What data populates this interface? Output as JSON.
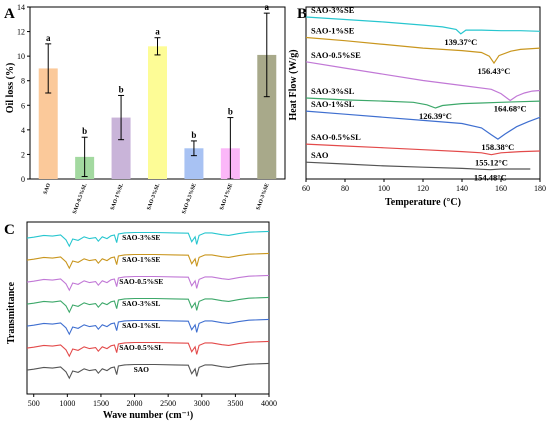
{
  "chart_data": [
    {
      "panel": "A",
      "type": "bar",
      "ylabel": "Oil loss (%)",
      "ylim": [
        0,
        14
      ],
      "yticks": [
        0,
        2,
        4,
        6,
        8,
        10,
        12,
        14
      ],
      "categories": [
        "SAO",
        "SAO-0.5%SL",
        "SAO-1%SL",
        "SAO-3%SL",
        "SAO-0.5%SE",
        "SAO-1%SE",
        "SAO-3%SE"
      ],
      "values": [
        9.0,
        1.8,
        5.0,
        10.8,
        2.5,
        2.5,
        10.1
      ],
      "errors": [
        2.0,
        1.6,
        1.8,
        0.7,
        0.6,
        2.5,
        3.4
      ],
      "significance": [
        "a",
        "b",
        "b",
        "a",
        "b",
        "b",
        "a"
      ],
      "colors": [
        "#fbc99a",
        "#a3d9a0",
        "#c9b4d9",
        "#fdfc96",
        "#a8c2f3",
        "#fbb7f8",
        "#a8a98a"
      ]
    },
    {
      "panel": "B",
      "type": "line",
      "xlabel": "Temperature (°C)",
      "ylabel": "Heat Flow (W/g)",
      "xlim": [
        60,
        180
      ],
      "xticks": [
        60,
        80,
        100,
        120,
        140,
        160,
        180
      ],
      "series": [
        {
          "name": "SAO-3%SE",
          "peak_label": "139.37°C",
          "color": "#27c6cf",
          "x": [
            60,
            80,
            100,
            120,
            130,
            137,
            139.4,
            142,
            150,
            160,
            170,
            180
          ],
          "y": [
            11.0,
            10.8,
            10.6,
            10.35,
            10.2,
            10.0,
            9.65,
            9.95,
            9.95,
            9.9,
            9.9,
            9.85
          ]
        },
        {
          "name": "SAO-1%SE",
          "peak_label": "156.43°C",
          "color": "#c9961e",
          "x": [
            60,
            80,
            100,
            120,
            140,
            150,
            154,
            156.4,
            159,
            165,
            170,
            180
          ],
          "y": [
            9.35,
            9.1,
            8.8,
            8.5,
            8.3,
            8.15,
            7.85,
            7.3,
            7.9,
            8.25,
            8.4,
            8.5
          ]
        },
        {
          "name": "SAO-0.5%SE",
          "peak_label": "164.68°C",
          "color": "#c178d6",
          "x": [
            60,
            80,
            100,
            120,
            140,
            155,
            160,
            164.7,
            168,
            172,
            176,
            180
          ],
          "y": [
            7.4,
            6.9,
            6.4,
            5.9,
            5.5,
            5.2,
            4.85,
            4.3,
            4.65,
            4.9,
            5.05,
            5.1
          ]
        },
        {
          "name": "SAO-3%SL",
          "peak_label": "126.39°C",
          "color": "#3da86a",
          "x": [
            60,
            80,
            100,
            115,
            122,
            126.4,
            130,
            140,
            150,
            160,
            170,
            180
          ],
          "y": [
            4.5,
            4.35,
            4.25,
            4.15,
            3.95,
            3.7,
            3.9,
            4.05,
            4.1,
            4.15,
            4.2,
            4.25
          ]
        },
        {
          "name": "SAO-1%SL",
          "peak_label": "158.38°C",
          "color": "#3f6fd0",
          "x": [
            60,
            80,
            100,
            120,
            140,
            150,
            155,
            158.4,
            162,
            168,
            174,
            180
          ],
          "y": [
            3.45,
            3.2,
            2.95,
            2.7,
            2.45,
            2.1,
            1.55,
            1.2,
            1.6,
            2.2,
            2.6,
            2.95
          ]
        },
        {
          "name": "SAO-0.5%SL",
          "peak_label": "155.12°C",
          "color": "#e34a4a",
          "x": [
            60,
            80,
            100,
            120,
            140,
            150,
            155.1,
            160,
            170,
            180
          ],
          "y": [
            0.8,
            0.65,
            0.5,
            0.35,
            0.2,
            0.1,
            -0.05,
            0.1,
            0.2,
            0.25
          ]
        },
        {
          "name": "SAO",
          "peak_label": "154.48°C",
          "color": "#555555",
          "x": [
            60,
            80,
            100,
            120,
            140,
            154.5,
            160,
            170,
            175
          ],
          "y": [
            -0.65,
            -0.8,
            -0.95,
            -1.05,
            -1.15,
            -1.25,
            -1.2,
            -1.2,
            -1.2
          ]
        }
      ]
    },
    {
      "panel": "C",
      "type": "line",
      "xlabel": "Wave number (cm⁻¹)",
      "ylabel": "Transmittance",
      "xlim": [
        400,
        4000
      ],
      "xticks": [
        500,
        1000,
        1500,
        2000,
        2500,
        3000,
        3500,
        4000
      ],
      "series": [
        {
          "name": "SAO-3%SE",
          "color": "#27c6cf"
        },
        {
          "name": "SAO-1%SE",
          "color": "#c9961e"
        },
        {
          "name": "SAO-0.5%SE",
          "color": "#c178d6"
        },
        {
          "name": "SAO-3%SL",
          "color": "#3da86a"
        },
        {
          "name": "SAO-1%SL",
          "color": "#3f6fd0"
        },
        {
          "name": "SAO-0.5%SL",
          "color": "#e34a4a"
        },
        {
          "name": "SAO",
          "color": "#555555"
        }
      ],
      "shared_profile": {
        "x": [
          400,
          500,
          650,
          780,
          900,
          980,
          1030,
          1080,
          1160,
          1250,
          1330,
          1420,
          1460,
          1520,
          1590,
          1650,
          1700,
          1735,
          1760,
          1850,
          2000,
          2300,
          2600,
          2800,
          2850,
          2900,
          2925,
          2960,
          3050,
          3150,
          3300,
          3400,
          3550,
          3700,
          3850,
          4000
        ],
        "t": [
          0.55,
          0.6,
          0.7,
          0.66,
          0.72,
          0.45,
          0.1,
          0.5,
          0.42,
          0.62,
          0.52,
          0.58,
          0.38,
          0.62,
          0.52,
          0.68,
          0.72,
          0.3,
          0.78,
          0.84,
          0.86,
          0.86,
          0.84,
          0.82,
          0.35,
          0.62,
          0.2,
          0.7,
          0.84,
          0.84,
          0.74,
          0.7,
          0.8,
          0.88,
          0.9,
          0.92
        ]
      }
    }
  ]
}
